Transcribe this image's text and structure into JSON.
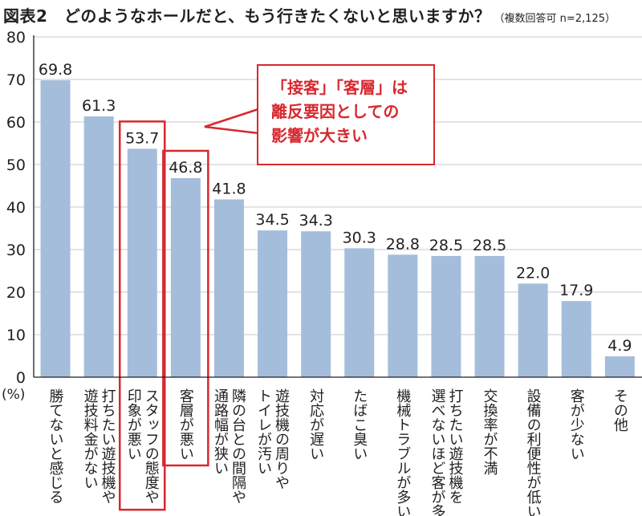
{
  "title": {
    "main": "図表2　どのようなホールだと、もう行きたくないと思いますか？",
    "note": "（複数回答可 n=2,125）"
  },
  "chart_data": {
    "type": "bar",
    "title": "どのようなホールだと、もう行きたくないと思いますか？",
    "ylabel": "(%)",
    "ylim": [
      0,
      80
    ],
    "yticks": [
      0,
      10,
      20,
      30,
      40,
      50,
      60,
      70,
      80
    ],
    "grid": true,
    "categories": [
      "勝てないと感じる",
      "打ちたい遊技機や遊技料金がない",
      "スタッフの態度や印象が悪い",
      "客層が悪い",
      "隣の台との間隔や通路幅が狭い",
      "遊技機の周りやトイレが汚い",
      "対応が遅い",
      "たばこ臭い",
      "機械トラブルが多い",
      "打ちたい遊技機を選べないほど客が多い",
      "交換率が不満",
      "設備の利便性が低い",
      "客が少ない",
      "その他"
    ],
    "category_lines": [
      [
        "勝てないと感じる"
      ],
      [
        "打ちたい遊技機や",
        "遊技料金がない"
      ],
      [
        "スタッフの態度や",
        "印象が悪い"
      ],
      [
        "客層が悪い"
      ],
      [
        "隣の台との間隔や",
        "通路幅が狭い"
      ],
      [
        "遊技機の周りや",
        "トイレが汚い"
      ],
      [
        "対応が遅い"
      ],
      [
        "たばこ臭い"
      ],
      [
        "機械トラブルが多い"
      ],
      [
        "打ちたい遊技機を",
        "選べないほど客が多い"
      ],
      [
        "交換率が不満"
      ],
      [
        "設備の利便性が低い"
      ],
      [
        "客が少ない"
      ],
      [
        "その他"
      ]
    ],
    "values": [
      69.8,
      61.3,
      53.7,
      46.8,
      41.8,
      34.5,
      34.3,
      30.3,
      28.8,
      28.5,
      28.5,
      22.0,
      17.9,
      4.9
    ],
    "value_labels": [
      "69.8",
      "61.3",
      "53.7",
      "46.8",
      "41.8",
      "34.5",
      "34.3",
      "30.3",
      "28.8",
      "28.5",
      "28.5",
      "22.0",
      "17.9",
      "4.9"
    ],
    "highlighted": [
      2,
      3
    ]
  },
  "callout": {
    "lines": [
      "「接客」「客層」は",
      "離反要因としての",
      "影響が大きい"
    ]
  },
  "colors": {
    "bar": "#a4bddb",
    "highlight": "#d7282f",
    "grid": "#c9c9c9",
    "text": "#231f20"
  }
}
